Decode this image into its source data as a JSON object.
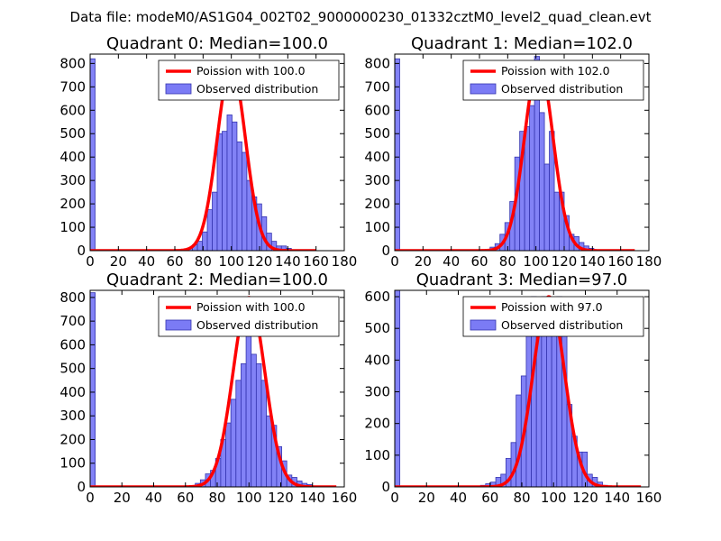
{
  "suptitle": "Data file: modeM0/AS1G04_002T02_9000000230_01332cztM0_level2_quad_clean.evt",
  "colors": {
    "observed": "#7b7bf5",
    "observed_edge": "#3535b0",
    "poisson": "#ff0000"
  },
  "chart_data": [
    {
      "type": "bar",
      "title": "Quadrant 0: Median=100.0",
      "legend": [
        "Poission with 100.0",
        "Observed distribution"
      ],
      "legend_position": "top-right",
      "xlim": [
        0,
        180
      ],
      "ylim": [
        0,
        840
      ],
      "xticks": [
        0,
        20,
        40,
        60,
        80,
        100,
        120,
        140,
        160,
        180
      ],
      "yticks": [
        0,
        100,
        200,
        300,
        400,
        500,
        600,
        700,
        800
      ],
      "bin_width": 3.5,
      "bins": [
        [
          0,
          820
        ],
        [
          69,
          10
        ],
        [
          72.5,
          25
        ],
        [
          76,
          40
        ],
        [
          79.5,
          80
        ],
        [
          83,
          175
        ],
        [
          86.5,
          250
        ],
        [
          90,
          500
        ],
        [
          93.5,
          510
        ],
        [
          97,
          580
        ],
        [
          100.5,
          550
        ],
        [
          104,
          465
        ],
        [
          107.5,
          420
        ],
        [
          111,
          300
        ],
        [
          114.5,
          230
        ],
        [
          118,
          200
        ],
        [
          121.5,
          145
        ],
        [
          125,
          75
        ],
        [
          128.5,
          40
        ],
        [
          132,
          20
        ],
        [
          135.5,
          20
        ],
        [
          139,
          10
        ]
      ],
      "poisson_mean": 100.0,
      "poisson_peak": 790,
      "poisson_range": [
        0,
        160
      ]
    },
    {
      "type": "bar",
      "title": "Quadrant 1: Median=102.0",
      "legend": [
        "Poission with 102.0",
        "Observed distribution"
      ],
      "legend_position": "top-right",
      "xlim": [
        0,
        180
      ],
      "ylim": [
        0,
        840
      ],
      "xticks": [
        0,
        20,
        40,
        60,
        80,
        100,
        120,
        140,
        160,
        180
      ],
      "yticks": [
        0,
        100,
        200,
        300,
        400,
        500,
        600,
        700,
        800
      ],
      "bin_width": 3.5,
      "bins": [
        [
          0,
          820
        ],
        [
          64,
          5
        ],
        [
          67.5,
          15
        ],
        [
          71,
          30
        ],
        [
          74.5,
          70
        ],
        [
          78,
          120
        ],
        [
          81.5,
          210
        ],
        [
          85,
          400
        ],
        [
          88.5,
          510
        ],
        [
          92,
          530
        ],
        [
          95.5,
          620
        ],
        [
          99,
          830
        ],
        [
          102.5,
          590
        ],
        [
          106,
          370
        ],
        [
          109.5,
          510
        ],
        [
          113,
          250
        ],
        [
          116.5,
          250
        ],
        [
          120,
          150
        ],
        [
          123.5,
          70
        ],
        [
          127,
          60
        ],
        [
          130.5,
          35
        ],
        [
          134,
          20
        ],
        [
          137.5,
          10
        ]
      ],
      "poisson_mean": 102.0,
      "poisson_peak": 800,
      "poisson_range": [
        0,
        170
      ]
    },
    {
      "type": "bar",
      "title": "Quadrant 2: Median=100.0",
      "legend": [
        "Poission with 100.0",
        "Observed distribution"
      ],
      "legend_position": "top-right",
      "xlim": [
        0,
        160
      ],
      "ylim": [
        0,
        830
      ],
      "xticks": [
        0,
        20,
        40,
        60,
        80,
        100,
        120,
        140,
        160
      ],
      "yticks": [
        0,
        100,
        200,
        300,
        400,
        500,
        600,
        700,
        800
      ],
      "bin_width": 3.2,
      "bins": [
        [
          0,
          820
        ],
        [
          63,
          5
        ],
        [
          66.2,
          15
        ],
        [
          69.4,
          30
        ],
        [
          72.6,
          55
        ],
        [
          75.8,
          70
        ],
        [
          79,
          120
        ],
        [
          82.2,
          200
        ],
        [
          85.4,
          270
        ],
        [
          88.6,
          370
        ],
        [
          91.8,
          450
        ],
        [
          95,
          520
        ],
        [
          98.2,
          700
        ],
        [
          101.4,
          560
        ],
        [
          104.6,
          520
        ],
        [
          107.8,
          450
        ],
        [
          111,
          300
        ],
        [
          114.2,
          260
        ],
        [
          117.4,
          170
        ],
        [
          120.6,
          110
        ],
        [
          123.8,
          50
        ],
        [
          127,
          40
        ],
        [
          130.2,
          25
        ],
        [
          133.4,
          15
        ],
        [
          136.6,
          10
        ]
      ],
      "poisson_mean": 100.0,
      "poisson_peak": 800,
      "poisson_range": [
        0,
        155
      ]
    },
    {
      "type": "bar",
      "title": "Quadrant 3: Median=97.0",
      "legend": [
        "Poission with 97.0",
        "Observed distribution"
      ],
      "legend_position": "top-right",
      "xlim": [
        0,
        160
      ],
      "ylim": [
        0,
        620
      ],
      "xticks": [
        0,
        20,
        40,
        60,
        80,
        100,
        120,
        140,
        160
      ],
      "yticks": [
        0,
        100,
        200,
        300,
        400,
        500,
        600
      ],
      "bin_width": 3.2,
      "bins": [
        [
          0,
          620
        ],
        [
          54,
          5
        ],
        [
          57.2,
          10
        ],
        [
          60.4,
          15
        ],
        [
          63.6,
          30
        ],
        [
          66.8,
          40
        ],
        [
          70,
          90
        ],
        [
          73.2,
          140
        ],
        [
          76.4,
          290
        ],
        [
          79.6,
          350
        ],
        [
          82.8,
          570
        ],
        [
          86,
          600
        ],
        [
          89.2,
          575
        ],
        [
          92.4,
          600
        ],
        [
          95.6,
          590
        ],
        [
          98.8,
          520
        ],
        [
          102,
          600
        ],
        [
          105.2,
          530
        ],
        [
          108.4,
          260
        ],
        [
          111.6,
          160
        ],
        [
          114.8,
          110
        ],
        [
          118,
          110
        ],
        [
          121.2,
          40
        ],
        [
          124.4,
          30
        ],
        [
          127.6,
          15
        ],
        [
          130.8,
          5
        ]
      ],
      "poisson_mean": 97.0,
      "poisson_peak": 600,
      "poisson_range": [
        0,
        155
      ]
    }
  ]
}
